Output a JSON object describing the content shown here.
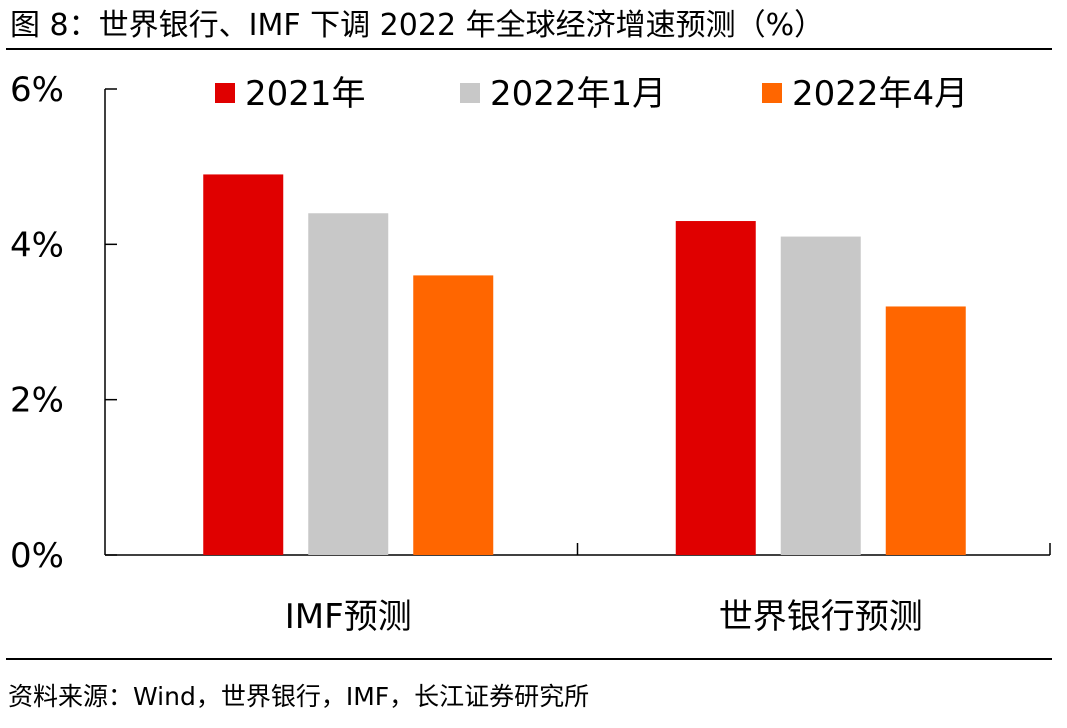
{
  "header": {
    "title": "图 8：世界银行、IMF 下调 2022 年全球经济增速预测（%）"
  },
  "footer": {
    "source": "资料来源：Wind，世界银行，IMF，长江证券研究所"
  },
  "chart_data": {
    "type": "bar",
    "title": "图 8：世界银行、IMF 下调 2022 年全球经济增速预测（%）",
    "xlabel": "",
    "ylabel": "",
    "ylim": [
      0,
      6
    ],
    "yticks": [
      0,
      2,
      4,
      6
    ],
    "ytick_labels": [
      "0%",
      "2%",
      "4%",
      "6%"
    ],
    "grid": false,
    "legend_position": "top",
    "categories": [
      "IMF预测",
      "世界银行预测"
    ],
    "series": [
      {
        "name": "2021年",
        "color": "#e00000",
        "values": [
          4.9,
          4.3
        ]
      },
      {
        "name": "2022年1月",
        "color": "#c8c8c8",
        "values": [
          4.4,
          4.1
        ]
      },
      {
        "name": "2022年4月",
        "color": "#ff6600",
        "values": [
          3.6,
          3.2
        ]
      }
    ]
  }
}
